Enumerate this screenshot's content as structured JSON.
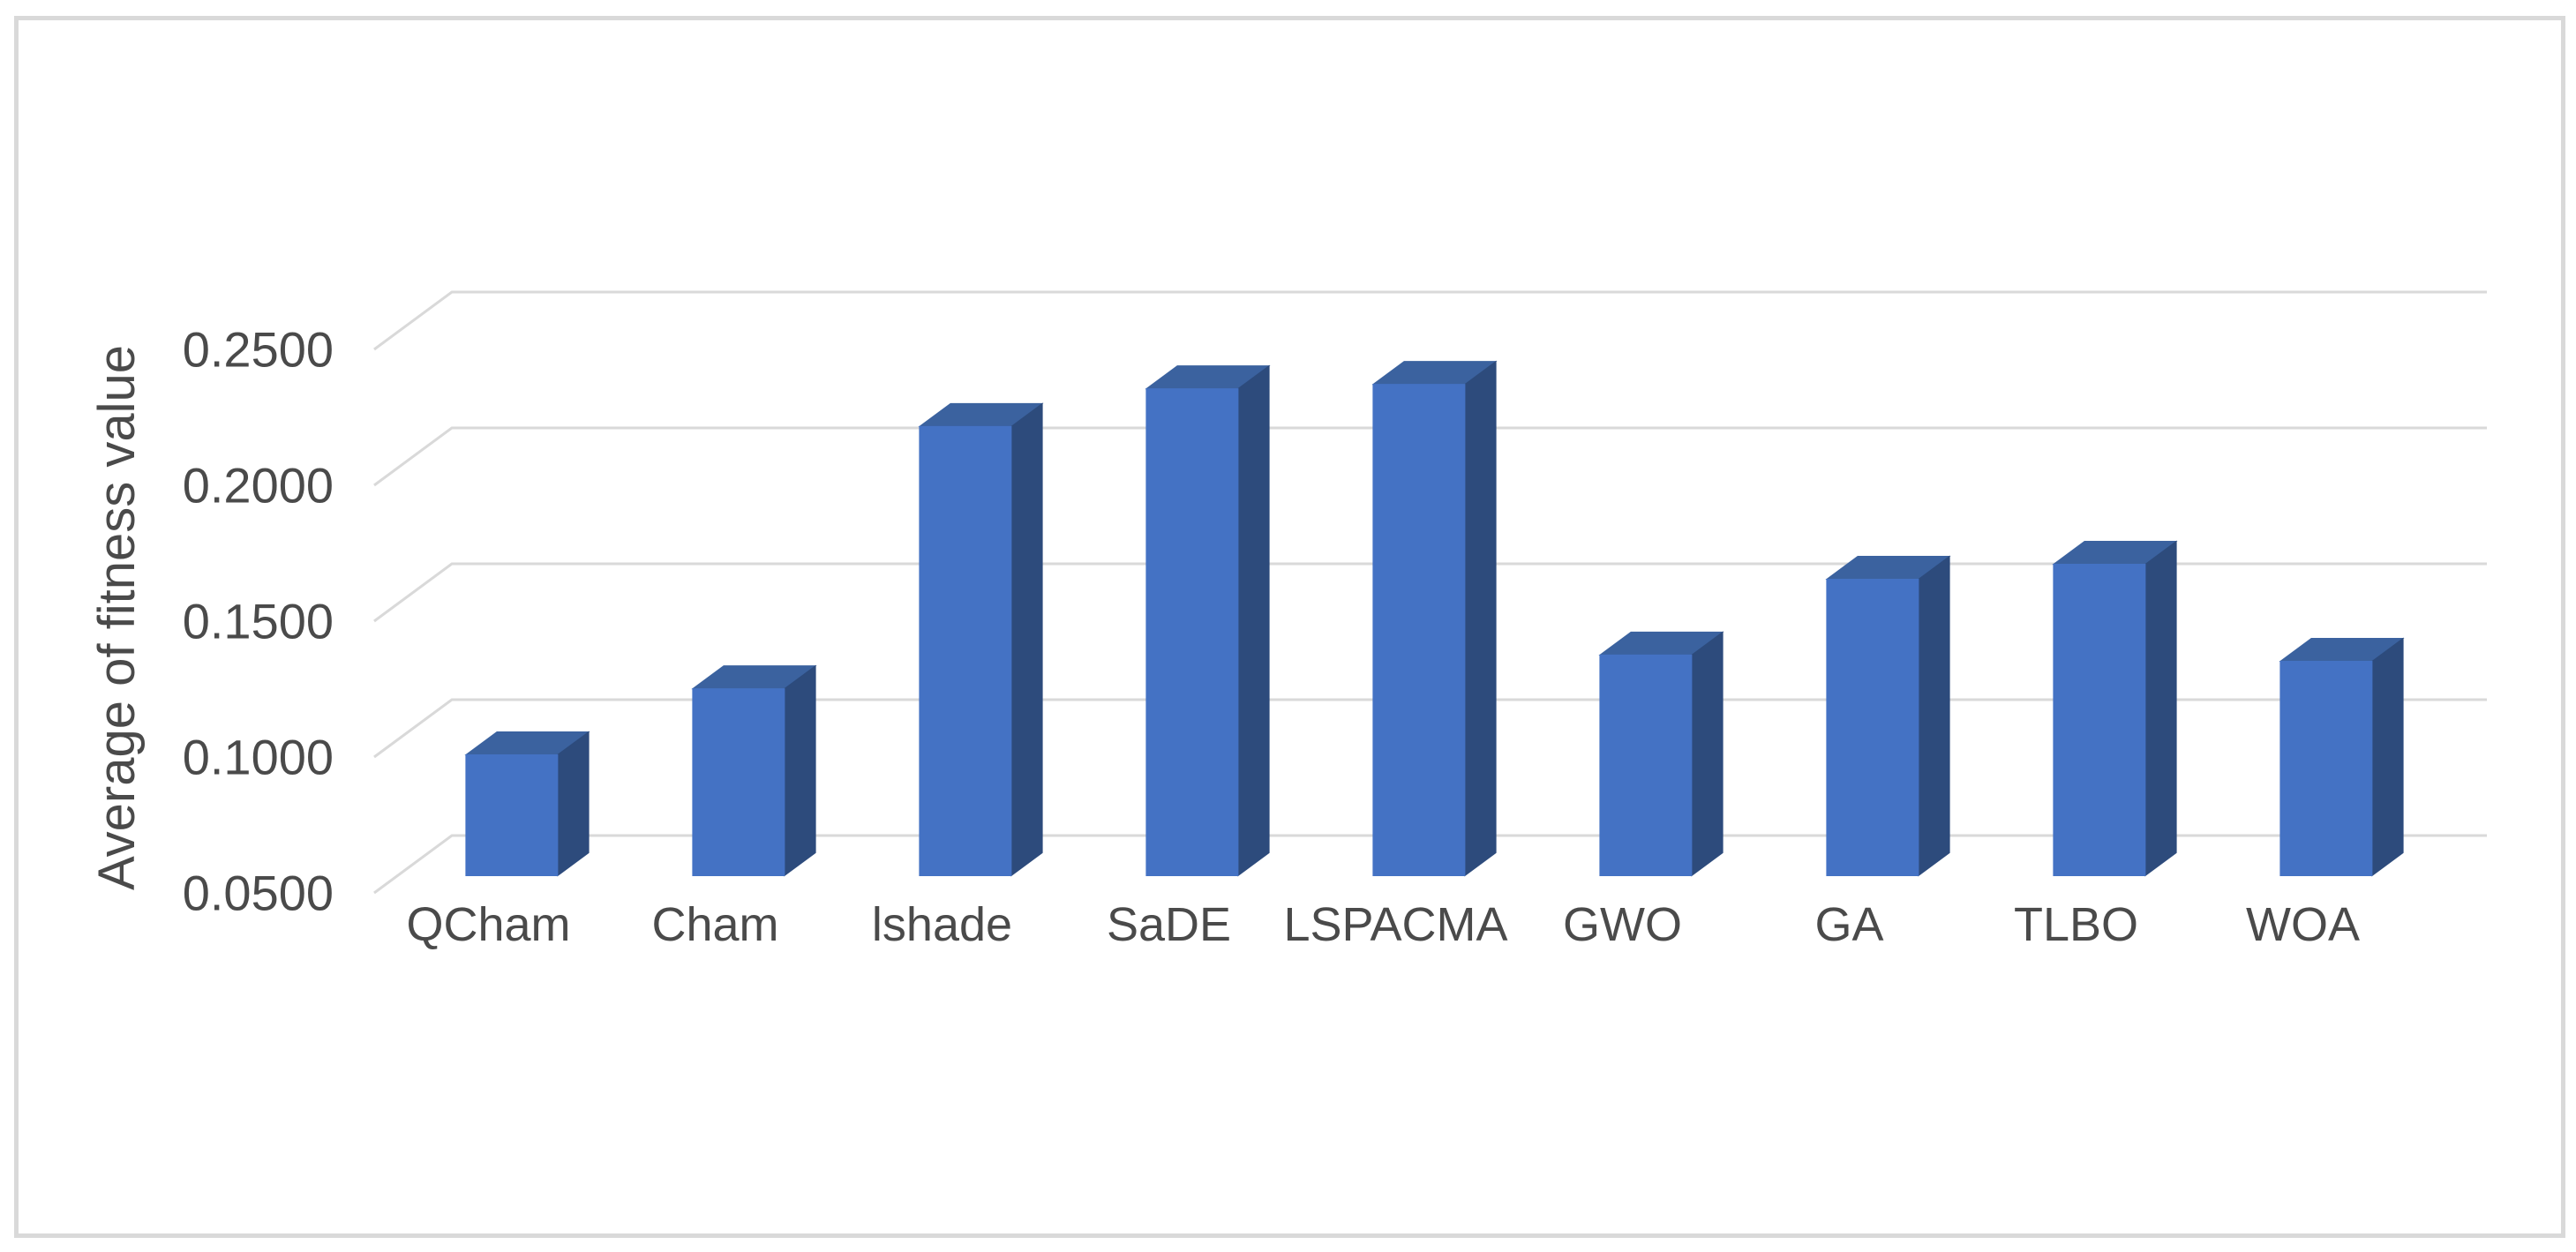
{
  "chart_data": {
    "type": "bar",
    "variant": "3d-column",
    "title": "",
    "xlabel": "",
    "ylabel": "Average of fitness value",
    "categories": [
      "QCham",
      "Cham",
      "lshade",
      "SaDE",
      "LSPACMA",
      "GWO",
      "GA",
      "TLBO",
      "WOA"
    ],
    "values": [
      0.0945,
      0.1188,
      0.2153,
      0.2292,
      0.2308,
      0.1312,
      0.1591,
      0.1646,
      0.1289
    ],
    "ylim": [
      0.05,
      0.25
    ],
    "ytick_step": 0.05,
    "ytick_labels": [
      "0.0500",
      "0.1000",
      "0.1500",
      "0.2000",
      "0.2500"
    ],
    "grid": true,
    "legend": false,
    "colors": {
      "bar_front": "#4472C4",
      "bar_top": "#3B629F",
      "bar_side": "#2D4B7C",
      "gridline": "#D9D9D9",
      "border": "#D9D9D9",
      "text": "#4A4A4A",
      "background": "#FFFFFF"
    }
  }
}
